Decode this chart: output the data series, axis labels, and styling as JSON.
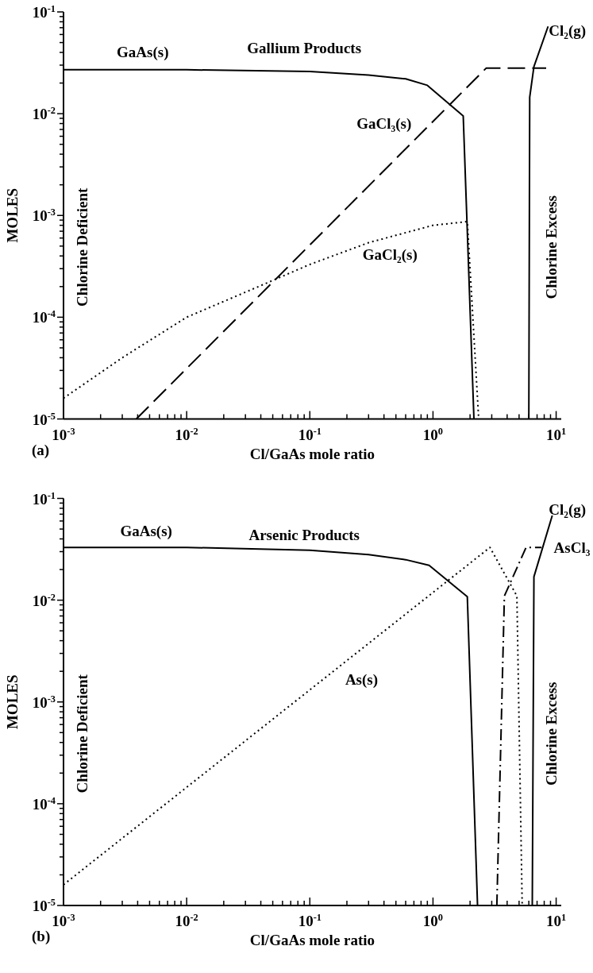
{
  "chart_data": [
    {
      "type": "line",
      "title": "Gallium Products",
      "xlabel": "Cl/GaAs mole ratio",
      "ylabel": "MOLES",
      "log": "xy",
      "xlim": [
        0.001,
        11
      ],
      "ylim": [
        1e-05,
        0.1
      ],
      "xticks": [
        {
          "value": 0.001,
          "label": "10$^{-3}$"
        },
        {
          "value": 0.002,
          "label": null
        },
        {
          "value": 0.003,
          "label": null
        },
        {
          "value": 0.004,
          "label": null
        },
        {
          "value": 0.005,
          "label": null
        },
        {
          "value": 0.006,
          "label": null
        },
        {
          "value": 0.007,
          "label": null
        },
        {
          "value": 0.008,
          "label": null
        },
        {
          "value": 0.009,
          "label": null
        },
        {
          "value": 0.01,
          "label": "10$^{-2}$"
        },
        {
          "value": 0.02,
          "label": null
        },
        {
          "value": 0.03,
          "label": null
        },
        {
          "value": 0.04,
          "label": null
        },
        {
          "value": 0.05,
          "label": null
        },
        {
          "value": 0.06,
          "label": null
        },
        {
          "value": 0.07,
          "label": null
        },
        {
          "value": 0.08,
          "label": null
        },
        {
          "value": 0.09,
          "label": null
        },
        {
          "value": 0.1,
          "label": "10$^{-1}$"
        },
        {
          "value": 0.2,
          "label": null
        },
        {
          "value": 0.3,
          "label": null
        },
        {
          "value": 0.4,
          "label": null
        },
        {
          "value": 0.5,
          "label": null
        },
        {
          "value": 0.6,
          "label": null
        },
        {
          "value": 0.7,
          "label": null
        },
        {
          "value": 0.8,
          "label": null
        },
        {
          "value": 0.9,
          "label": null
        },
        {
          "value": 1,
          "label": "10$^{0}$"
        },
        {
          "value": 2,
          "label": null
        },
        {
          "value": 3,
          "label": null
        },
        {
          "value": 4,
          "label": null
        },
        {
          "value": 5,
          "label": null
        },
        {
          "value": 6,
          "label": null
        },
        {
          "value": 7,
          "label": null
        },
        {
          "value": 8,
          "label": null
        },
        {
          "value": 9,
          "label": null
        },
        {
          "value": 10,
          "label": "10$^{1}$"
        }
      ],
      "yticks": [
        {
          "value": 1e-05,
          "label": "10$^{-5}$"
        },
        {
          "value": 2e-05,
          "label": null
        },
        {
          "value": 3e-05,
          "label": null
        },
        {
          "value": 4e-05,
          "label": null
        },
        {
          "value": 5e-05,
          "label": null
        },
        {
          "value": 6e-05,
          "label": null
        },
        {
          "value": 7e-05,
          "label": null
        },
        {
          "value": 8e-05,
          "label": null
        },
        {
          "value": 9e-05,
          "label": null
        },
        {
          "value": 0.0001,
          "label": "10$^{-4}$"
        },
        {
          "value": 0.0002,
          "label": null
        },
        {
          "value": 0.0003,
          "label": null
        },
        {
          "value": 0.0004,
          "label": null
        },
        {
          "value": 0.0005,
          "label": null
        },
        {
          "value": 0.0006,
          "label": null
        },
        {
          "value": 0.0007,
          "label": null
        },
        {
          "value": 0.0008,
          "label": null
        },
        {
          "value": 0.0009,
          "label": null
        },
        {
          "value": 0.001,
          "label": "10$^{-3}$"
        },
        {
          "value": 0.002,
          "label": null
        },
        {
          "value": 0.003,
          "label": null
        },
        {
          "value": 0.004,
          "label": null
        },
        {
          "value": 0.005,
          "label": null
        },
        {
          "value": 0.006,
          "label": null
        },
        {
          "value": 0.007,
          "label": null
        },
        {
          "value": 0.008,
          "label": null
        },
        {
          "value": 0.009,
          "label": null
        },
        {
          "value": 0.01,
          "label": "10$^{-2}$"
        },
        {
          "value": 0.02,
          "label": null
        },
        {
          "value": 0.03,
          "label": null
        },
        {
          "value": 0.04,
          "label": null
        },
        {
          "value": 0.05,
          "label": null
        },
        {
          "value": 0.06,
          "label": null
        },
        {
          "value": 0.07,
          "label": null
        },
        {
          "value": 0.08,
          "label": null
        },
        {
          "value": 0.09,
          "label": null
        },
        {
          "value": 0.1,
          "label": "10$^{-1}$"
        }
      ],
      "series": [
        {
          "name": "GaAs(s)",
          "color": "#000000",
          "line_style": "solid",
          "x": [
            0.001,
            0.01,
            0.1,
            0.3,
            0.6,
            0.9,
            1.76,
            2.15
          ],
          "values": [
            0.027,
            0.027,
            0.026,
            0.024,
            0.022,
            0.019,
            0.0095,
            1e-05
          ]
        },
        {
          "name": "GaCl₃(s)",
          "color": "#000000",
          "line_style": "dashed",
          "x": [
            0.0039,
            2.7,
            8.3
          ],
          "values": [
            1e-05,
            0.028,
            0.028
          ]
        },
        {
          "name": "GaCl₂(s)",
          "color": "#000000",
          "line_style": "dotted",
          "x": [
            0.001,
            0.003,
            0.01,
            0.028,
            0.1,
            0.3,
            1,
            1.9,
            2.35
          ],
          "values": [
            1.6e-05,
            4e-05,
            0.0001,
            0.00017,
            0.00033,
            0.00054,
            0.0008,
            0.00087,
            1e-05
          ]
        },
        {
          "name": "Cl₂(g)",
          "color": "#000000",
          "line_style": "solid",
          "x": [
            6.0,
            6.1,
            6.6,
            8.6
          ],
          "values": [
            1e-05,
            0.0145,
            0.029,
            0.072
          ]
        }
      ],
      "annotations": [
        "Chlorine Deficient",
        "Chlorine Excess",
        "(a)"
      ]
    },
    {
      "type": "line",
      "title": "Arsenic Products",
      "xlabel": "Cl/GaAs mole ratio",
      "ylabel": "MOLES",
      "log": "xy",
      "xlim": [
        0.001,
        11
      ],
      "ylim": [
        1e-05,
        0.1
      ],
      "xticks": [
        {
          "value": 0.001,
          "label": "10$^{-3}$"
        },
        {
          "value": 0.002,
          "label": null
        },
        {
          "value": 0.003,
          "label": null
        },
        {
          "value": 0.004,
          "label": null
        },
        {
          "value": 0.005,
          "label": null
        },
        {
          "value": 0.006,
          "label": null
        },
        {
          "value": 0.007,
          "label": null
        },
        {
          "value": 0.008,
          "label": null
        },
        {
          "value": 0.009,
          "label": null
        },
        {
          "value": 0.01,
          "label": "10$^{-2}$"
        },
        {
          "value": 0.02,
          "label": null
        },
        {
          "value": 0.03,
          "label": null
        },
        {
          "value": 0.04,
          "label": null
        },
        {
          "value": 0.05,
          "label": null
        },
        {
          "value": 0.06,
          "label": null
        },
        {
          "value": 0.07,
          "label": null
        },
        {
          "value": 0.08,
          "label": null
        },
        {
          "value": 0.09,
          "label": null
        },
        {
          "value": 0.1,
          "label": "10$^{-1}$"
        },
        {
          "value": 0.2,
          "label": null
        },
        {
          "value": 0.3,
          "label": null
        },
        {
          "value": 0.4,
          "label": null
        },
        {
          "value": 0.5,
          "label": null
        },
        {
          "value": 0.6,
          "label": null
        },
        {
          "value": 0.7,
          "label": null
        },
        {
          "value": 0.8,
          "label": null
        },
        {
          "value": 0.9,
          "label": null
        },
        {
          "value": 1,
          "label": "10$^{0}$"
        },
        {
          "value": 2,
          "label": null
        },
        {
          "value": 3,
          "label": null
        },
        {
          "value": 4,
          "label": null
        },
        {
          "value": 5,
          "label": null
        },
        {
          "value": 6,
          "label": null
        },
        {
          "value": 7,
          "label": null
        },
        {
          "value": 8,
          "label": null
        },
        {
          "value": 9,
          "label": null
        },
        {
          "value": 10,
          "label": "10$^{1}$"
        }
      ],
      "yticks": [
        {
          "value": 1e-05,
          "label": "10$^{-5}$"
        },
        {
          "value": 2e-05,
          "label": null
        },
        {
          "value": 3e-05,
          "label": null
        },
        {
          "value": 4e-05,
          "label": null
        },
        {
          "value": 5e-05,
          "label": null
        },
        {
          "value": 6e-05,
          "label": null
        },
        {
          "value": 7e-05,
          "label": null
        },
        {
          "value": 8e-05,
          "label": null
        },
        {
          "value": 9e-05,
          "label": null
        },
        {
          "value": 0.0001,
          "label": "10$^{-4}$"
        },
        {
          "value": 0.0002,
          "label": null
        },
        {
          "value": 0.0003,
          "label": null
        },
        {
          "value": 0.0004,
          "label": null
        },
        {
          "value": 0.0005,
          "label": null
        },
        {
          "value": 0.0006,
          "label": null
        },
        {
          "value": 0.0007,
          "label": null
        },
        {
          "value": 0.0008,
          "label": null
        },
        {
          "value": 0.0009,
          "label": null
        },
        {
          "value": 0.001,
          "label": "10$^{-3}$"
        },
        {
          "value": 0.002,
          "label": null
        },
        {
          "value": 0.003,
          "label": null
        },
        {
          "value": 0.004,
          "label": null
        },
        {
          "value": 0.005,
          "label": null
        },
        {
          "value": 0.006,
          "label": null
        },
        {
          "value": 0.007,
          "label": null
        },
        {
          "value": 0.008,
          "label": null
        },
        {
          "value": 0.009,
          "label": null
        },
        {
          "value": 0.01,
          "label": "10$^{-2}$"
        },
        {
          "value": 0.02,
          "label": null
        },
        {
          "value": 0.03,
          "label": null
        },
        {
          "value": 0.04,
          "label": null
        },
        {
          "value": 0.05,
          "label": null
        },
        {
          "value": 0.06,
          "label": null
        },
        {
          "value": 0.07,
          "label": null
        },
        {
          "value": 0.08,
          "label": null
        },
        {
          "value": 0.09,
          "label": null
        },
        {
          "value": 0.1,
          "label": "10$^{-1}$"
        }
      ],
      "series": [
        {
          "name": "GaAs(s)",
          "color": "#000000",
          "line_style": "solid",
          "x": [
            0.001,
            0.01,
            0.1,
            0.3,
            0.6,
            0.93,
            1.9,
            2.3
          ],
          "values": [
            0.033,
            0.033,
            0.031,
            0.028,
            0.025,
            0.022,
            0.0108,
            1e-05
          ]
        },
        {
          "name": "As(s)",
          "color": "#000000",
          "line_style": "dotted",
          "x": [
            0.001,
            2.9,
            4.8,
            5.3
          ],
          "values": [
            1.6e-05,
            0.033,
            0.011,
            1e-05
          ]
        },
        {
          "name": "AsCl₃",
          "color": "#000000",
          "line_style": "dashdot",
          "x": [
            3.3,
            3.8,
            5.7,
            7.6
          ],
          "values": [
            1e-05,
            0.011,
            0.033,
            0.033
          ]
        },
        {
          "name": "Cl₂(g)",
          "color": "#000000",
          "line_style": "solid",
          "x": [
            6.4,
            6.6,
            9.3
          ],
          "values": [
            1e-05,
            0.017,
            0.068
          ]
        }
      ],
      "annotations": [
        "Chlorine Deficient",
        "Chlorine Excess",
        "(b)"
      ]
    }
  ]
}
